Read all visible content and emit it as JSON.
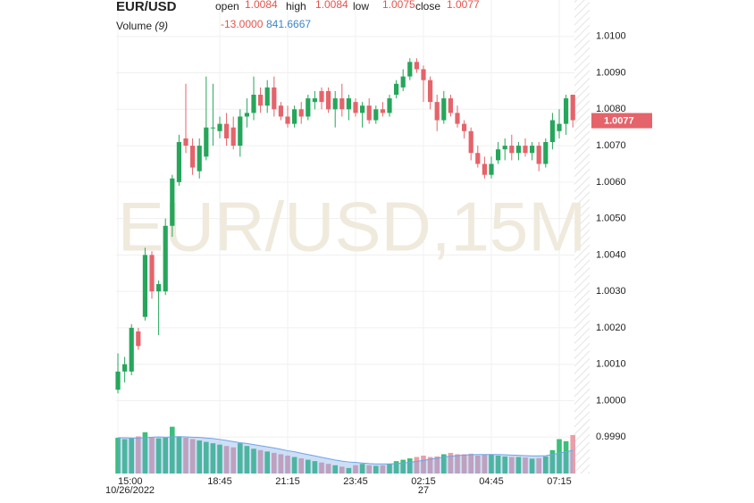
{
  "chart_data": {
    "type": "candlestick",
    "symbol": "EUR/USD",
    "watermark": "EUR/USD,15M",
    "header": {
      "fields": [
        {
          "label": "open",
          "value": "1.0084"
        },
        {
          "label": "high",
          "value": "1.0084"
        },
        {
          "label": "low",
          "value": "1.0075"
        },
        {
          "label": "close",
          "value": "1.0077"
        }
      ],
      "volume_label": "Volume",
      "volume_period": "(9)",
      "volume_change": "-13.0000",
      "volume_ma": "841.6667"
    },
    "open": [
      1.0003,
      1.0008,
      1.0008,
      1.0019,
      1.0023,
      1.004,
      1.003,
      1.003,
      1.0048,
      1.006,
      1.0072,
      1.007,
      1.0063,
      1.0067,
      1.0075,
      1.0074,
      1.0076,
      1.0075,
      1.007,
      1.0078,
      1.0079,
      1.0084,
      1.0081,
      1.0086,
      1.0081,
      1.0078,
      1.0076,
      1.008,
      1.0078,
      1.0082,
      1.0085,
      1.0085,
      1.008,
      1.0083,
      1.008,
      1.0082,
      1.0079,
      1.0081,
      1.0077,
      1.008,
      1.0079,
      1.0084,
      1.0086,
      1.0089,
      1.0093,
      1.0091,
      1.0088,
      1.0082,
      1.0077,
      1.0083,
      1.0079,
      1.0076,
      1.0074,
      1.0068,
      1.0065,
      1.0062,
      1.0066,
      1.0069,
      1.007,
      1.0068,
      1.007,
      1.0068,
      1.007,
      1.0065,
      1.0071,
      1.0074,
      1.0076,
      1.0084
    ],
    "high": [
      1.0013,
      1.0012,
      1.0021,
      1.002,
      1.0042,
      1.0041,
      1.0033,
      1.005,
      1.0062,
      1.0073,
      1.0087,
      1.0072,
      1.0072,
      1.0089,
      1.0087,
      1.0078,
      1.0079,
      1.0078,
      1.008,
      1.0083,
      1.0089,
      1.0086,
      1.0088,
      1.0089,
      1.0082,
      1.0081,
      1.0081,
      1.0082,
      1.0084,
      1.0085,
      1.0086,
      1.0086,
      1.0085,
      1.0087,
      1.0084,
      1.0083,
      1.0082,
      1.0083,
      1.0081,
      1.0082,
      1.0084,
      1.0088,
      1.0091,
      1.0094,
      1.0094,
      1.0092,
      1.0089,
      1.0084,
      1.0085,
      1.0084,
      1.0081,
      1.0077,
      1.0075,
      1.007,
      1.0067,
      1.0067,
      1.0071,
      1.0072,
      1.0073,
      1.0071,
      1.0072,
      1.0071,
      1.0071,
      1.0072,
      1.0079,
      1.008,
      1.0084,
      1.0084
    ],
    "low": [
      1.0002,
      1.0005,
      1.0007,
      1.0014,
      1.0022,
      1.0028,
      1.0018,
      1.0029,
      1.0045,
      1.0059,
      1.0068,
      1.0062,
      1.0061,
      1.0066,
      1.007,
      1.0072,
      1.007,
      1.0069,
      1.0067,
      1.0075,
      1.0077,
      1.0079,
      1.0079,
      1.0078,
      1.0077,
      1.0075,
      1.0075,
      1.0076,
      1.0077,
      1.008,
      1.008,
      1.0079,
      1.0075,
      1.0078,
      1.0077,
      1.0078,
      1.0075,
      1.0076,
      1.0076,
      1.0078,
      1.0078,
      1.0083,
      1.0085,
      1.0088,
      1.009,
      1.0082,
      1.008,
      1.0074,
      1.0076,
      1.0078,
      1.0075,
      1.0072,
      1.0066,
      1.0064,
      1.0061,
      1.0061,
      1.0065,
      1.0066,
      1.0066,
      1.0066,
      1.0067,
      1.0066,
      1.0063,
      1.0064,
      1.0069,
      1.0072,
      1.0073,
      1.0075
    ],
    "close": [
      1.0008,
      1.001,
      1.002,
      1.0015,
      1.004,
      1.003,
      1.0032,
      1.0048,
      1.0061,
      1.0071,
      1.007,
      1.0064,
      1.007,
      1.0075,
      1.0075,
      1.0076,
      1.0072,
      1.007,
      1.0078,
      1.0079,
      1.0084,
      1.0081,
      1.0086,
      1.008,
      1.0078,
      1.0076,
      1.008,
      1.0078,
      1.0083,
      1.0083,
      1.0082,
      1.008,
      1.0083,
      1.008,
      1.0083,
      1.0079,
      1.0081,
      1.0077,
      1.008,
      1.0079,
      1.0083,
      1.0087,
      1.0089,
      1.0093,
      1.0091,
      1.0088,
      1.0082,
      1.0077,
      1.0083,
      1.0079,
      1.0076,
      1.0074,
      1.0068,
      1.0065,
      1.0062,
      1.0065,
      1.0069,
      1.007,
      1.0068,
      1.007,
      1.0068,
      1.007,
      1.0065,
      1.0071,
      1.0077,
      1.0076,
      1.0083,
      1.0077
    ],
    "volume": [
      1300,
      1250,
      1280,
      1350,
      1500,
      1300,
      1280,
      1300,
      1700,
      1350,
      1300,
      1250,
      1200,
      1150,
      1100,
      1050,
      1000,
      950,
      1100,
      1000,
      900,
      850,
      800,
      750,
      700,
      650,
      600,
      550,
      500,
      450,
      400,
      350,
      300,
      250,
      200,
      300,
      350,
      300,
      280,
      300,
      350,
      450,
      500,
      550,
      600,
      650,
      600,
      620,
      700,
      750,
      700,
      700,
      720,
      650,
      680,
      700,
      650,
      620,
      600,
      600,
      580,
      540,
      560,
      620,
      850,
      1250,
      1175,
      1400
    ],
    "volume_ma_values": [
      1300,
      1300,
      1290,
      1290,
      1300,
      1320,
      1330,
      1320,
      1330,
      1340,
      1330,
      1320,
      1310,
      1290,
      1270,
      1240,
      1200,
      1160,
      1120,
      1090,
      1050,
      1010,
      970,
      930,
      880,
      830,
      790,
      740,
      690,
      640,
      590,
      540,
      490,
      450,
      420,
      400,
      380,
      360,
      350,
      350,
      350,
      360,
      380,
      410,
      440,
      480,
      520,
      560,
      600,
      630,
      650,
      670,
      680,
      690,
      690,
      690,
      690,
      680,
      670,
      660,
      650,
      640,
      640,
      650,
      690,
      740,
      790,
      841.6667
    ],
    "up_color": "#26a65b",
    "down_color": "#e5636a",
    "volume_up_color": "#3bbf7a",
    "volume_down_color": "#e8a0aa",
    "volume_ma_color": "#6fa3e6",
    "xlim": [
      -0.5,
      67.5
    ],
    "xticks": [
      {
        "value": 0,
        "label": "15:00",
        "sublabel": "10/26/2022"
      },
      {
        "value": 15,
        "label": "18:45"
      },
      {
        "value": 25,
        "label": "21:15"
      },
      {
        "value": 35,
        "label": "23:45"
      },
      {
        "value": 45,
        "label": "02:15",
        "sublabel": "27"
      },
      {
        "value": 55,
        "label": "04:45"
      },
      {
        "value": 65,
        "label": "07:15"
      }
    ],
    "ylim": [
      0.998,
      1.011
    ],
    "yticks": [
      {
        "value": 0.999,
        "label": "0.9990"
      },
      {
        "value": 1.0,
        "label": "1.0000"
      },
      {
        "value": 1.001,
        "label": "1.0010"
      },
      {
        "value": 1.002,
        "label": "1.0020"
      },
      {
        "value": 1.003,
        "label": "1.0030"
      },
      {
        "value": 1.004,
        "label": "1.0040"
      },
      {
        "value": 1.005,
        "label": "1.0050"
      },
      {
        "value": 1.006,
        "label": "1.0060"
      },
      {
        "value": 1.007,
        "label": "1.0070"
      },
      {
        "value": 1.008,
        "label": "1.0080"
      },
      {
        "value": 1.009,
        "label": "1.0090"
      },
      {
        "value": 1.01,
        "label": "1.0100"
      }
    ],
    "last_price": {
      "value": 1.0077,
      "label": "1.0077"
    },
    "grid": true
  }
}
